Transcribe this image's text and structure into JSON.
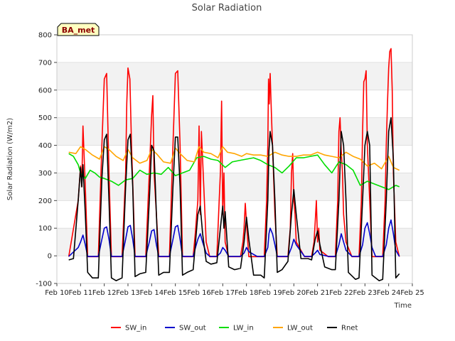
{
  "chart_data": {
    "type": "line",
    "title": "Solar Radiation",
    "xlabel": "Time",
    "ylabel": "Solar Radiation (W/m2)",
    "station_label": "BA_met",
    "xlim": [
      10,
      25
    ],
    "ylim": [
      -100,
      800
    ],
    "x_ticks": [
      {
        "v": 10,
        "label": "Feb 10"
      },
      {
        "v": 11,
        "label": "Feb 11"
      },
      {
        "v": 12,
        "label": "Feb 12"
      },
      {
        "v": 13,
        "label": "Feb 13"
      },
      {
        "v": 14,
        "label": "Feb 14"
      },
      {
        "v": 15,
        "label": "Feb 15"
      },
      {
        "v": 16,
        "label": "Feb 16"
      },
      {
        "v": 17,
        "label": "Feb 17"
      },
      {
        "v": 18,
        "label": "Feb 18"
      },
      {
        "v": 19,
        "label": "Feb 19"
      },
      {
        "v": 20,
        "label": "Feb 20"
      },
      {
        "v": 21,
        "label": "Feb 21"
      },
      {
        "v": 22,
        "label": "Feb 22"
      },
      {
        "v": 23,
        "label": "Feb 23"
      },
      {
        "v": 24,
        "label": "Feb 24"
      },
      {
        "v": 25,
        "label": "Feb 25"
      }
    ],
    "y_ticks": [
      -100,
      0,
      100,
      200,
      300,
      400,
      500,
      600,
      700,
      800
    ],
    "grid": "horizontal bands",
    "legend_position": "bottom",
    "series": [
      {
        "name": "SW_in",
        "color": "#ff0000",
        "x": [
          10.5,
          10.9,
          11.0,
          11.05,
          11.1,
          11.2,
          11.3,
          11.4,
          11.75,
          11.9,
          12.0,
          12.1,
          12.2,
          12.3,
          12.45,
          12.75,
          12.9,
          12.95,
          13.0,
          13.08,
          13.15,
          13.3,
          13.45,
          13.75,
          13.9,
          14.0,
          14.05,
          14.1,
          14.2,
          14.3,
          14.45,
          14.75,
          14.9,
          15.0,
          15.1,
          15.2,
          15.3,
          15.45,
          15.75,
          15.85,
          15.9,
          15.95,
          16.0,
          16.05,
          16.1,
          16.3,
          16.45,
          16.75,
          16.85,
          16.9,
          16.95,
          17.0,
          17.05,
          17.1,
          17.25,
          17.45,
          17.75,
          17.85,
          17.9,
          17.95,
          18.0,
          18.1,
          18.45,
          18.75,
          18.85,
          18.9,
          18.93,
          18.96,
          19.0,
          19.05,
          19.1,
          19.2,
          19.3,
          19.45,
          19.75,
          19.85,
          19.9,
          19.95,
          20.0,
          20.05,
          20.1,
          20.45,
          20.75,
          20.85,
          20.9,
          20.95,
          21.0,
          21.05,
          21.1,
          21.45,
          21.75,
          21.85,
          21.9,
          21.95,
          22.0,
          22.05,
          22.1,
          22.2,
          22.45,
          22.75,
          22.85,
          22.9,
          22.95,
          23.0,
          23.05,
          23.1,
          23.2,
          23.3,
          23.45,
          23.75,
          23.85,
          23.9,
          23.95,
          24.0,
          24.05,
          24.1,
          24.15,
          24.2,
          24.3,
          24.45
        ],
        "y": [
          -3,
          200,
          325,
          250,
          470,
          250,
          -3,
          -3,
          -3,
          400,
          640,
          660,
          300,
          -3,
          -3,
          -3,
          300,
          550,
          680,
          640,
          400,
          -3,
          -3,
          -3,
          300,
          510,
          580,
          300,
          150,
          -3,
          -3,
          -3,
          400,
          660,
          670,
          400,
          -3,
          -3,
          -3,
          90,
          150,
          200,
          470,
          150,
          450,
          50,
          -3,
          -3,
          200,
          300,
          560,
          150,
          300,
          50,
          -3,
          -3,
          -3,
          50,
          100,
          190,
          120,
          -3,
          -3,
          -3,
          200,
          400,
          640,
          550,
          660,
          520,
          400,
          150,
          -3,
          -3,
          -3,
          100,
          300,
          370,
          200,
          150,
          50,
          -3,
          -3,
          50,
          120,
          200,
          50,
          100,
          20,
          -3,
          -3,
          200,
          450,
          500,
          380,
          300,
          150,
          50,
          -3,
          -3,
          200,
          450,
          630,
          640,
          670,
          400,
          200,
          -3,
          -3,
          -3,
          200,
          400,
          550,
          680,
          740,
          750,
          600,
          300,
          50,
          -3
        ]
      },
      {
        "name": "SW_out",
        "color": "#0000cc",
        "x": [
          10.5,
          10.9,
          11.0,
          11.1,
          11.2,
          11.3,
          11.4,
          11.75,
          11.9,
          12.0,
          12.1,
          12.2,
          12.3,
          12.45,
          12.75,
          12.9,
          13.0,
          13.1,
          13.2,
          13.3,
          13.45,
          13.75,
          13.9,
          14.0,
          14.1,
          14.2,
          14.3,
          14.45,
          14.75,
          14.9,
          15.0,
          15.1,
          15.2,
          15.3,
          15.45,
          15.75,
          15.85,
          15.95,
          16.05,
          16.15,
          16.3,
          16.45,
          16.75,
          16.9,
          17.0,
          17.1,
          17.25,
          17.45,
          17.75,
          17.9,
          18.0,
          18.1,
          18.45,
          18.75,
          18.9,
          18.95,
          19.0,
          19.1,
          19.2,
          19.3,
          19.45,
          19.75,
          19.9,
          20.0,
          20.1,
          20.45,
          20.75,
          20.9,
          21.0,
          21.1,
          21.45,
          21.75,
          21.9,
          22.0,
          22.1,
          22.2,
          22.45,
          22.75,
          22.9,
          23.0,
          23.1,
          23.2,
          23.3,
          23.45,
          23.75,
          23.9,
          24.0,
          24.1,
          24.2,
          24.3,
          24.45
        ],
        "y": [
          -2,
          30,
          50,
          75,
          40,
          -2,
          -2,
          -2,
          60,
          100,
          105,
          60,
          -2,
          -2,
          -2,
          60,
          105,
          110,
          60,
          -2,
          -2,
          -2,
          50,
          90,
          95,
          40,
          -2,
          -2,
          -2,
          60,
          105,
          110,
          60,
          -2,
          -2,
          -2,
          30,
          60,
          80,
          50,
          10,
          -2,
          -2,
          10,
          30,
          20,
          -2,
          -2,
          -2,
          10,
          30,
          15,
          -2,
          -2,
          30,
          80,
          100,
          80,
          40,
          -2,
          -2,
          -2,
          30,
          60,
          40,
          -2,
          -2,
          10,
          20,
          5,
          -2,
          -2,
          40,
          80,
          50,
          20,
          -2,
          -2,
          40,
          100,
          120,
          80,
          30,
          -2,
          -2,
          40,
          100,
          130,
          80,
          20,
          -2
        ]
      },
      {
        "name": "LW_in",
        "color": "#00dd00",
        "x": [
          10.5,
          10.7,
          10.9,
          11.0,
          11.2,
          11.4,
          11.6,
          11.8,
          12.0,
          12.3,
          12.6,
          12.9,
          13.2,
          13.5,
          13.8,
          14.1,
          14.4,
          14.7,
          15.0,
          15.3,
          15.6,
          15.9,
          16.2,
          16.5,
          16.8,
          17.1,
          17.4,
          17.7,
          18.0,
          18.3,
          18.6,
          18.9,
          19.2,
          19.5,
          19.8,
          20.1,
          20.4,
          20.7,
          21.0,
          21.3,
          21.6,
          21.9,
          22.2,
          22.5,
          22.8,
          23.1,
          23.4,
          23.7,
          24.0,
          24.3,
          24.45
        ],
        "y": [
          370,
          360,
          330,
          300,
          280,
          310,
          300,
          285,
          280,
          270,
          255,
          275,
          280,
          310,
          295,
          300,
          295,
          320,
          290,
          300,
          310,
          355,
          360,
          350,
          345,
          320,
          340,
          345,
          350,
          355,
          345,
          330,
          320,
          300,
          325,
          355,
          355,
          360,
          365,
          330,
          300,
          340,
          330,
          310,
          255,
          270,
          260,
          250,
          240,
          255,
          250
        ]
      },
      {
        "name": "LW_out",
        "color": "#ffa500",
        "x": [
          10.5,
          10.8,
          11.0,
          11.2,
          11.5,
          11.8,
          12.0,
          12.2,
          12.5,
          12.8,
          13.0,
          13.2,
          13.5,
          13.8,
          14.0,
          14.2,
          14.5,
          14.8,
          15.0,
          15.2,
          15.5,
          15.8,
          16.0,
          16.2,
          16.5,
          16.8,
          17.0,
          17.2,
          17.5,
          17.8,
          18.0,
          18.3,
          18.6,
          18.9,
          19.2,
          19.5,
          19.8,
          20.1,
          20.4,
          20.7,
          21.0,
          21.3,
          21.6,
          21.9,
          22.2,
          22.5,
          22.8,
          23.1,
          23.4,
          23.7,
          24.0,
          24.2,
          24.45
        ],
        "y": [
          375,
          370,
          395,
          385,
          365,
          350,
          395,
          385,
          360,
          345,
          385,
          355,
          335,
          345,
          385,
          370,
          340,
          335,
          390,
          370,
          345,
          340,
          395,
          375,
          370,
          355,
          395,
          375,
          370,
          360,
          370,
          365,
          365,
          360,
          375,
          365,
          360,
          360,
          365,
          365,
          375,
          365,
          360,
          355,
          375,
          360,
          350,
          325,
          335,
          315,
          360,
          320,
          310
        ]
      },
      {
        "name": "Rnet",
        "color": "#000000",
        "x": [
          10.5,
          10.7,
          10.9,
          11.0,
          11.05,
          11.1,
          11.2,
          11.3,
          11.5,
          11.75,
          11.9,
          12.0,
          12.1,
          12.2,
          12.3,
          12.5,
          12.75,
          12.9,
          13.0,
          13.1,
          13.2,
          13.3,
          13.5,
          13.75,
          13.9,
          14.0,
          14.1,
          14.2,
          14.3,
          14.5,
          14.75,
          14.9,
          15.0,
          15.1,
          15.2,
          15.3,
          15.5,
          15.75,
          15.85,
          15.95,
          16.05,
          16.15,
          16.3,
          16.5,
          16.75,
          16.9,
          17.0,
          17.05,
          17.1,
          17.25,
          17.5,
          17.75,
          17.9,
          18.0,
          18.1,
          18.3,
          18.6,
          18.75,
          18.9,
          18.95,
          19.0,
          19.1,
          19.2,
          19.3,
          19.5,
          19.75,
          19.9,
          20.0,
          20.1,
          20.3,
          20.6,
          20.75,
          20.9,
          21.0,
          21.1,
          21.3,
          21.6,
          21.75,
          21.9,
          22.0,
          22.1,
          22.2,
          22.3,
          22.6,
          22.75,
          22.9,
          23.0,
          23.1,
          23.2,
          23.3,
          23.6,
          23.75,
          23.9,
          24.0,
          24.1,
          24.2,
          24.3,
          24.45
        ],
        "y": [
          -15,
          -10,
          200,
          320,
          250,
          330,
          150,
          -60,
          -80,
          -80,
          280,
          420,
          440,
          200,
          -80,
          -90,
          -80,
          250,
          420,
          440,
          250,
          -75,
          -65,
          -60,
          200,
          400,
          380,
          150,
          -70,
          -60,
          -60,
          250,
          430,
          430,
          250,
          -70,
          -60,
          -50,
          50,
          150,
          180,
          80,
          -20,
          -30,
          -25,
          100,
          180,
          100,
          160,
          -40,
          -50,
          -45,
          50,
          140,
          60,
          -70,
          -70,
          -80,
          200,
          380,
          450,
          400,
          200,
          -60,
          -50,
          -20,
          150,
          240,
          150,
          -10,
          -10,
          -15,
          60,
          90,
          40,
          -40,
          -50,
          -50,
          200,
          450,
          400,
          200,
          -60,
          -85,
          -80,
          200,
          400,
          450,
          400,
          -70,
          -90,
          -85,
          200,
          450,
          500,
          350,
          -80,
          -65
        ]
      }
    ]
  }
}
